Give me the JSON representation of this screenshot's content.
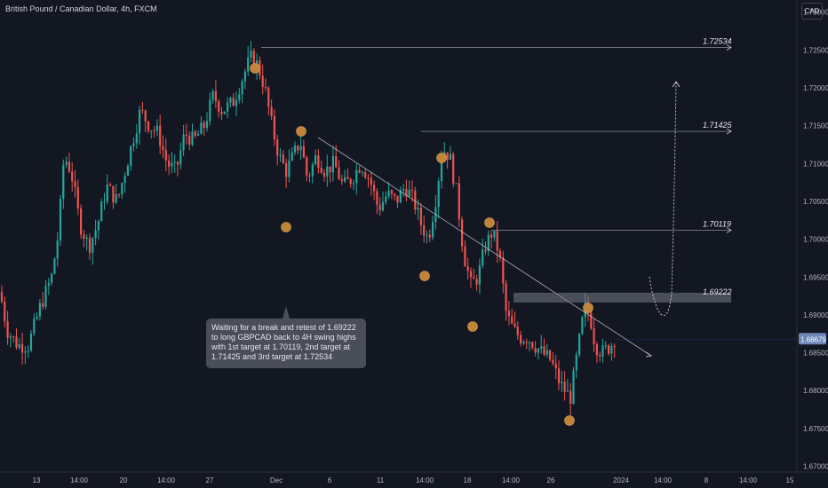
{
  "header": {
    "title": "British Pound / Canadian Dollar, 4h, FXCM"
  },
  "currency_button": "CAD",
  "annotation": "Waiting for a break and retest of 1.69222 to long GBPCAD back to 4H swing highs with 1st target at 1.70119, 2nd target at 1.71425 and 3rd target at 1.72534",
  "current_price_label": "1.68679",
  "colors": {
    "background": "#131722",
    "up": "#26a69a",
    "down": "#ef5350",
    "marker": "#c98a3a",
    "line": "#d1d4dc",
    "zone": "#787b86"
  },
  "chart_data": {
    "type": "candlestick",
    "title": "British Pound / Canadian Dollar, 4h, FXCM",
    "xlabel": "",
    "ylabel": "",
    "ylim": [
      1.67,
      1.735
    ],
    "y_ticks": [
      "1.67000",
      "1.67500",
      "1.68000",
      "1.68500",
      "1.69000",
      "1.69500",
      "1.70000",
      "1.70500",
      "1.71000",
      "1.71500",
      "1.72000",
      "1.72500",
      "1.73000"
    ],
    "x_ticks": [
      "13",
      "14:00",
      "20",
      "14:00",
      "27",
      "Dec",
      "6",
      "11",
      "14:00",
      "18",
      "14:00",
      "26",
      "2024",
      "14:00",
      "8",
      "14:00",
      "15"
    ],
    "levels": [
      {
        "label": "1.72534",
        "value": 1.72534
      },
      {
        "label": "1.71425",
        "value": 1.71425
      },
      {
        "label": "1.70119",
        "value": 1.70119
      },
      {
        "label": "1.69222",
        "value": 1.69222
      }
    ],
    "last_price": 1.68679,
    "price_path": [
      [
        0,
        1.693
      ],
      [
        8,
        1.688
      ],
      [
        20,
        1.686
      ],
      [
        32,
        1.686
      ],
      [
        45,
        1.691
      ],
      [
        58,
        1.695
      ],
      [
        66,
        1.701
      ],
      [
        72,
        1.711
      ],
      [
        80,
        1.709
      ],
      [
        90,
        1.702
      ],
      [
        100,
        1.699
      ],
      [
        110,
        1.702
      ],
      [
        120,
        1.707
      ],
      [
        132,
        1.705
      ],
      [
        145,
        1.711
      ],
      [
        158,
        1.717
      ],
      [
        168,
        1.715
      ],
      [
        178,
        1.714
      ],
      [
        188,
        1.71
      ],
      [
        198,
        1.709
      ],
      [
        208,
        1.714
      ],
      [
        218,
        1.713
      ],
      [
        230,
        1.715
      ],
      [
        240,
        1.719
      ],
      [
        250,
        1.717
      ],
      [
        262,
        1.718
      ],
      [
        272,
        1.721
      ],
      [
        282,
        1.724
      ],
      [
        290,
        1.723
      ],
      [
        298,
        1.72
      ],
      [
        306,
        1.715
      ],
      [
        314,
        1.711
      ],
      [
        322,
        1.709
      ],
      [
        330,
        1.711
      ],
      [
        338,
        1.713
      ],
      [
        346,
        1.708
      ],
      [
        356,
        1.711
      ],
      [
        366,
        1.709
      ],
      [
        376,
        1.71
      ],
      [
        386,
        1.707
      ],
      [
        396,
        1.708
      ],
      [
        406,
        1.71
      ],
      [
        416,
        1.708
      ],
      [
        426,
        1.704
      ],
      [
        436,
        1.706
      ],
      [
        446,
        1.705
      ],
      [
        456,
        1.707
      ],
      [
        466,
        1.705
      ],
      [
        474,
        1.702
      ],
      [
        482,
        1.7
      ],
      [
        490,
        1.705
      ],
      [
        498,
        1.712
      ],
      [
        506,
        1.711
      ],
      [
        514,
        1.706
      ],
      [
        522,
        1.698
      ],
      [
        530,
        1.694
      ],
      [
        538,
        1.695
      ],
      [
        546,
        1.699
      ],
      [
        554,
        1.701
      ],
      [
        562,
        1.698
      ],
      [
        570,
        1.69
      ],
      [
        578,
        1.688
      ],
      [
        586,
        1.687
      ],
      [
        594,
        1.687
      ],
      [
        602,
        1.686
      ],
      [
        610,
        1.685
      ],
      [
        620,
        1.684
      ],
      [
        630,
        1.681
      ],
      [
        642,
        1.679
      ],
      [
        650,
        1.685
      ],
      [
        658,
        1.691
      ],
      [
        664,
        1.69
      ],
      [
        670,
        1.686
      ],
      [
        678,
        1.685
      ],
      [
        688,
        1.686
      ],
      [
        692,
        1.687
      ]
    ],
    "swing_markers": [
      {
        "x": "27 14:00",
        "y": 1.7265
      },
      {
        "x": "Dec 4",
        "y": 1.7175
      },
      {
        "x": "Dec 1",
        "y": 1.7057
      },
      {
        "x": "Dec 14",
        "y": 1.7153
      },
      {
        "x": "Dec 13",
        "y": 1.6987
      },
      {
        "x": "Dec 19",
        "y": 1.7055
      },
      {
        "x": "Dec 18",
        "y": 1.6905
      },
      {
        "x": "Dec 28",
        "y": 1.6772
      },
      {
        "x": "Dec 29",
        "y": 1.6929
      }
    ],
    "grid": false,
    "legend": "none"
  }
}
